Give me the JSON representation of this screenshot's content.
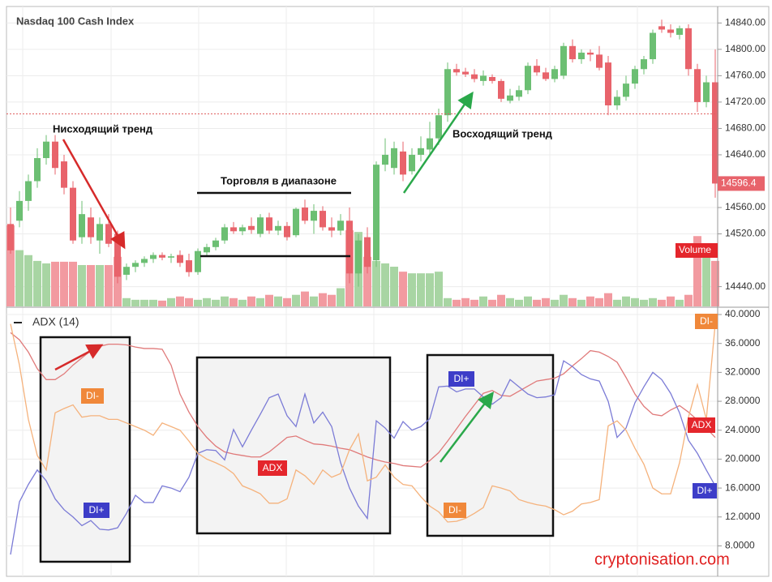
{
  "chart_data": [
    {
      "type": "candlestick",
      "title": "Nasdaq 100 Cash Index",
      "volume_label": "Volume",
      "annotations": [
        "Нисходящий тренд",
        "Торговля в диапазоне",
        "Восходящий тренд"
      ],
      "ylim": [
        14410,
        14865
      ],
      "yticks": [
        {
          "value": 14840,
          "label": "14840.00"
        },
        {
          "value": 14800,
          "label": "14800.00"
        },
        {
          "value": 14760,
          "label": "14760.00"
        },
        {
          "value": 14720,
          "label": "14720.00"
        },
        {
          "value": 14680,
          "label": "14680.00"
        },
        {
          "value": 14640,
          "label": "14640.00"
        },
        {
          "value": 14560,
          "label": "14560.00"
        },
        {
          "value": 14520,
          "label": "14520.00"
        },
        {
          "value": 14440,
          "label": "14440.00"
        }
      ],
      "reference_line": 14702,
      "up_color": "#6cbf73",
      "down_color": "#e8636b",
      "volume_up_color": "#a8d5a3",
      "volume_down_color": "#f29aa0",
      "open": [
        14535,
        14540,
        14570,
        14600,
        14635,
        14660,
        14630,
        14590,
        14515,
        14545,
        14510,
        14535,
        14520,
        14458,
        14470,
        14476,
        14482,
        14488,
        14484,
        14488,
        14480,
        14462,
        14492,
        14500,
        14510,
        14530,
        14524,
        14532,
        14520,
        14545,
        14525,
        14532,
        14518,
        14560,
        14540,
        14555,
        14530,
        14525,
        14540,
        14460,
        14515,
        14480,
        14625,
        14620,
        14645,
        14615,
        14640,
        14648,
        14665,
        14700,
        14770,
        14766,
        14762,
        14752,
        14758,
        14752,
        14722,
        14728,
        14738,
        14775,
        14765,
        14755,
        14760,
        14805,
        14785,
        14795,
        14792,
        14780,
        14715,
        14728,
        14748,
        14770,
        14785,
        14835,
        14830,
        14822,
        14832,
        14770,
        14720,
        14750
      ],
      "high": [
        14560,
        14585,
        14610,
        14650,
        14670,
        14670,
        14640,
        14600,
        14570,
        14560,
        14545,
        14550,
        14525,
        14475,
        14480,
        14486,
        14492,
        14492,
        14490,
        14495,
        14490,
        14498,
        14505,
        14514,
        14535,
        14538,
        14534,
        14545,
        14550,
        14552,
        14540,
        14538,
        14560,
        14572,
        14565,
        14562,
        14545,
        14550,
        14560,
        14520,
        14530,
        14630,
        14665,
        14660,
        14660,
        14650,
        14668,
        14690,
        14710,
        14780,
        14778,
        14772,
        14770,
        14768,
        14762,
        14755,
        14740,
        14745,
        14780,
        14785,
        14772,
        14775,
        14810,
        14815,
        14800,
        14800,
        14805,
        14790,
        14738,
        14760,
        14775,
        14790,
        14830,
        14845,
        14838,
        14836,
        14838,
        14778,
        14760,
        14800
      ],
      "low": [
        14490,
        14530,
        14555,
        14590,
        14625,
        14610,
        14580,
        14505,
        14505,
        14505,
        14490,
        14500,
        14445,
        14450,
        14462,
        14470,
        14476,
        14480,
        14476,
        14470,
        14455,
        14458,
        14486,
        14495,
        14505,
        14520,
        14518,
        14520,
        14515,
        14520,
        14518,
        14510,
        14515,
        14535,
        14520,
        14525,
        14515,
        14518,
        14445,
        14440,
        14460,
        14470,
        14615,
        14610,
        14600,
        14610,
        14630,
        14640,
        14655,
        14690,
        14760,
        14758,
        14750,
        14745,
        14748,
        14720,
        14718,
        14722,
        14732,
        14760,
        14752,
        14750,
        14755,
        14780,
        14778,
        14782,
        14768,
        14700,
        14708,
        14722,
        14740,
        14762,
        14778,
        14825,
        14818,
        14815,
        14760,
        14705,
        14712,
        14575
      ],
      "close": [
        14495,
        14570,
        14600,
        14635,
        14660,
        14620,
        14590,
        14510,
        14550,
        14515,
        14535,
        14505,
        14455,
        14470,
        14476,
        14482,
        14488,
        14484,
        14486,
        14476,
        14462,
        14494,
        14500,
        14510,
        14530,
        14524,
        14530,
        14526,
        14545,
        14525,
        14532,
        14515,
        14558,
        14540,
        14555,
        14530,
        14525,
        14540,
        14460,
        14510,
        14470,
        14625,
        14640,
        14650,
        14610,
        14640,
        14650,
        14665,
        14700,
        14770,
        14765,
        14762,
        14755,
        14760,
        14752,
        14725,
        14730,
        14738,
        14775,
        14765,
        14755,
        14770,
        14805,
        14785,
        14795,
        14792,
        14772,
        14715,
        14728,
        14748,
        14770,
        14785,
        14825,
        14830,
        14825,
        14832,
        14770,
        14720,
        14750,
        14596.4
      ],
      "volume": [
        98,
        68,
        62,
        55,
        52,
        54,
        54,
        54,
        50,
        50,
        50,
        50,
        60,
        10,
        8,
        8,
        8,
        7,
        10,
        12,
        10,
        8,
        10,
        8,
        12,
        10,
        8,
        12,
        10,
        14,
        12,
        10,
        14,
        18,
        12,
        16,
        14,
        22,
        92,
        90,
        60,
        55,
        52,
        48,
        42,
        40,
        40,
        40,
        42,
        10,
        8,
        10,
        8,
        12,
        8,
        14,
        10,
        8,
        12,
        8,
        10,
        8,
        14,
        10,
        8,
        12,
        10,
        16,
        8,
        12,
        10,
        8,
        10,
        8,
        12,
        8,
        14,
        85,
        60,
        55
      ]
    },
    {
      "type": "line",
      "title": "ADX (14)",
      "watermark": "cryptonisation.com",
      "ylim": [
        3.9,
        40.9
      ],
      "yticks": [
        {
          "value": 40,
          "label": "40.0000"
        },
        {
          "value": 36,
          "label": "36.0000"
        },
        {
          "value": 32,
          "label": "32.0000"
        },
        {
          "value": 28,
          "label": "28.0000"
        },
        {
          "value": 24,
          "label": "24.0000"
        },
        {
          "value": 20,
          "label": "20.0000"
        },
        {
          "value": 16,
          "label": "16.0000"
        },
        {
          "value": 12,
          "label": "12.0000"
        },
        {
          "value": 8,
          "label": "8.0000"
        }
      ],
      "series": [
        {
          "name": "ADX",
          "color": "#e07a7a",
          "label_color": "#e4262c",
          "values": [
            37.5,
            36.5,
            34.8,
            32.5,
            31,
            31,
            31.8,
            33,
            34,
            35,
            35.6,
            35.9,
            35.9,
            35.8,
            35.5,
            35.3,
            35.3,
            35.2,
            33,
            29,
            26.5,
            24.5,
            23,
            21.8,
            21,
            20.7,
            20.5,
            20.3,
            20.3,
            21,
            22,
            23,
            23.2,
            22.6,
            22.1,
            22,
            21.8,
            21.5,
            21.3,
            20.8,
            20.3,
            19.9,
            19.6,
            19.4,
            19.1,
            19,
            18.9,
            19.8,
            20.9,
            22.5,
            24.2,
            25.9,
            27.5,
            29.1,
            29.5,
            28.8,
            28.7,
            29.4,
            30.1,
            30.8,
            31,
            31.2,
            31.8,
            32.9,
            33.9,
            35,
            34.8,
            34.2,
            33.4,
            31.3,
            29,
            27.3,
            26.2,
            26,
            26.8,
            27.4,
            26.5,
            25.4,
            24.3,
            23
          ]
        },
        {
          "name": "DI+",
          "color": "#7b7bd6",
          "label_color": "#3d3dc8",
          "values": [
            6.8,
            14.1,
            16.5,
            18.5,
            17,
            14.5,
            13,
            12,
            10.8,
            11.5,
            10.3,
            10.2,
            10.5,
            12.5,
            15,
            14,
            14,
            16.3,
            16,
            15.5,
            17.5,
            20.8,
            21.3,
            21.2,
            19.9,
            24.1,
            21.7,
            24,
            26.2,
            28.5,
            29,
            26,
            24.5,
            29,
            25,
            26.5,
            24.5,
            19.5,
            16,
            13.5,
            11.8,
            25.3,
            24.3,
            22.9,
            25.2,
            24,
            24.5,
            25.6,
            30,
            30.1,
            29.3,
            29.7,
            29.7,
            28.6,
            27.6,
            28.5,
            31,
            30,
            29,
            28.5,
            28.6,
            28.9,
            33.6,
            32.8,
            31.7,
            31.1,
            30.8,
            28,
            23,
            24.3,
            27.8,
            30,
            32,
            31,
            29.1,
            26.4,
            22.6,
            20.8,
            18.5,
            16.3
          ]
        },
        {
          "name": "DI-",
          "color": "#f5b27c",
          "label_color": "#f0883a",
          "values": [
            38.7,
            33,
            25.5,
            20.5,
            18.5,
            26.4,
            27,
            27.5,
            25.8,
            26,
            26,
            25.5,
            25.5,
            25,
            24.5,
            24,
            23.3,
            25,
            24.5,
            24,
            22.5,
            20.8,
            20,
            19.5,
            18.9,
            18,
            16.3,
            15.8,
            15.2,
            13.9,
            13.9,
            14.5,
            18.5,
            17.7,
            16.5,
            18.5,
            17.5,
            18,
            21.3,
            23.5,
            17,
            17.5,
            19.2,
            17.5,
            16.5,
            16.3,
            14.8,
            13.5,
            12.7,
            11.3,
            11.4,
            11.8,
            12.5,
            13.3,
            16.3,
            16,
            15.6,
            14.4,
            14,
            13.7,
            13.5,
            13,
            12.3,
            12.8,
            13.8,
            14,
            14.4,
            24.6,
            25.3,
            24,
            21.5,
            19.3,
            16,
            15.2,
            15.2,
            19.5,
            25.8,
            30.3,
            25.5,
            38.7
          ]
        }
      ]
    }
  ]
}
